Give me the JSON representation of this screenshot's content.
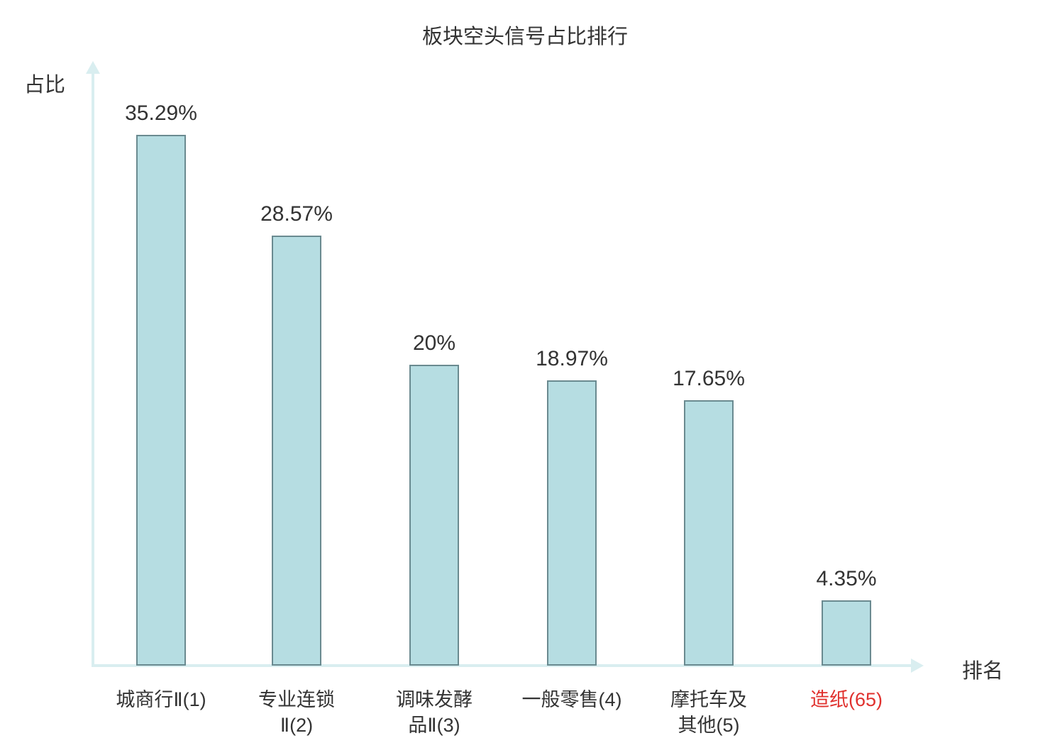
{
  "chart_data": {
    "type": "bar",
    "title": "板块空头信号占比排行",
    "xlabel": "排名",
    "ylabel": "占比",
    "categories": [
      "城商行Ⅱ(1)",
      "专业连锁Ⅱ(2)",
      "调味发酵品Ⅱ(3)",
      "一般零售(4)",
      "摩托车及其他(5)",
      "造纸(65)"
    ],
    "category_lines": [
      "城商行Ⅱ(1)",
      "专业连锁\nⅡ(2)",
      "调味发酵\n品Ⅱ(3)",
      "一般零售(4)",
      "摩托车及\n其他(5)",
      "造纸(65)"
    ],
    "values": [
      35.29,
      28.57,
      20,
      18.97,
      17.65,
      4.35
    ],
    "value_labels": [
      "35.29%",
      "28.57%",
      "20%",
      "18.97%",
      "17.65%",
      "4.35%"
    ],
    "highlight_index": 5,
    "ylim": [
      0,
      40
    ],
    "grid": false,
    "legend": "none",
    "colors": {
      "bar_fill": "#b6dde2",
      "bar_border": "#6a8a90",
      "axis": "#d9eef0",
      "text": "#333333",
      "highlight": "#e0312e"
    }
  }
}
